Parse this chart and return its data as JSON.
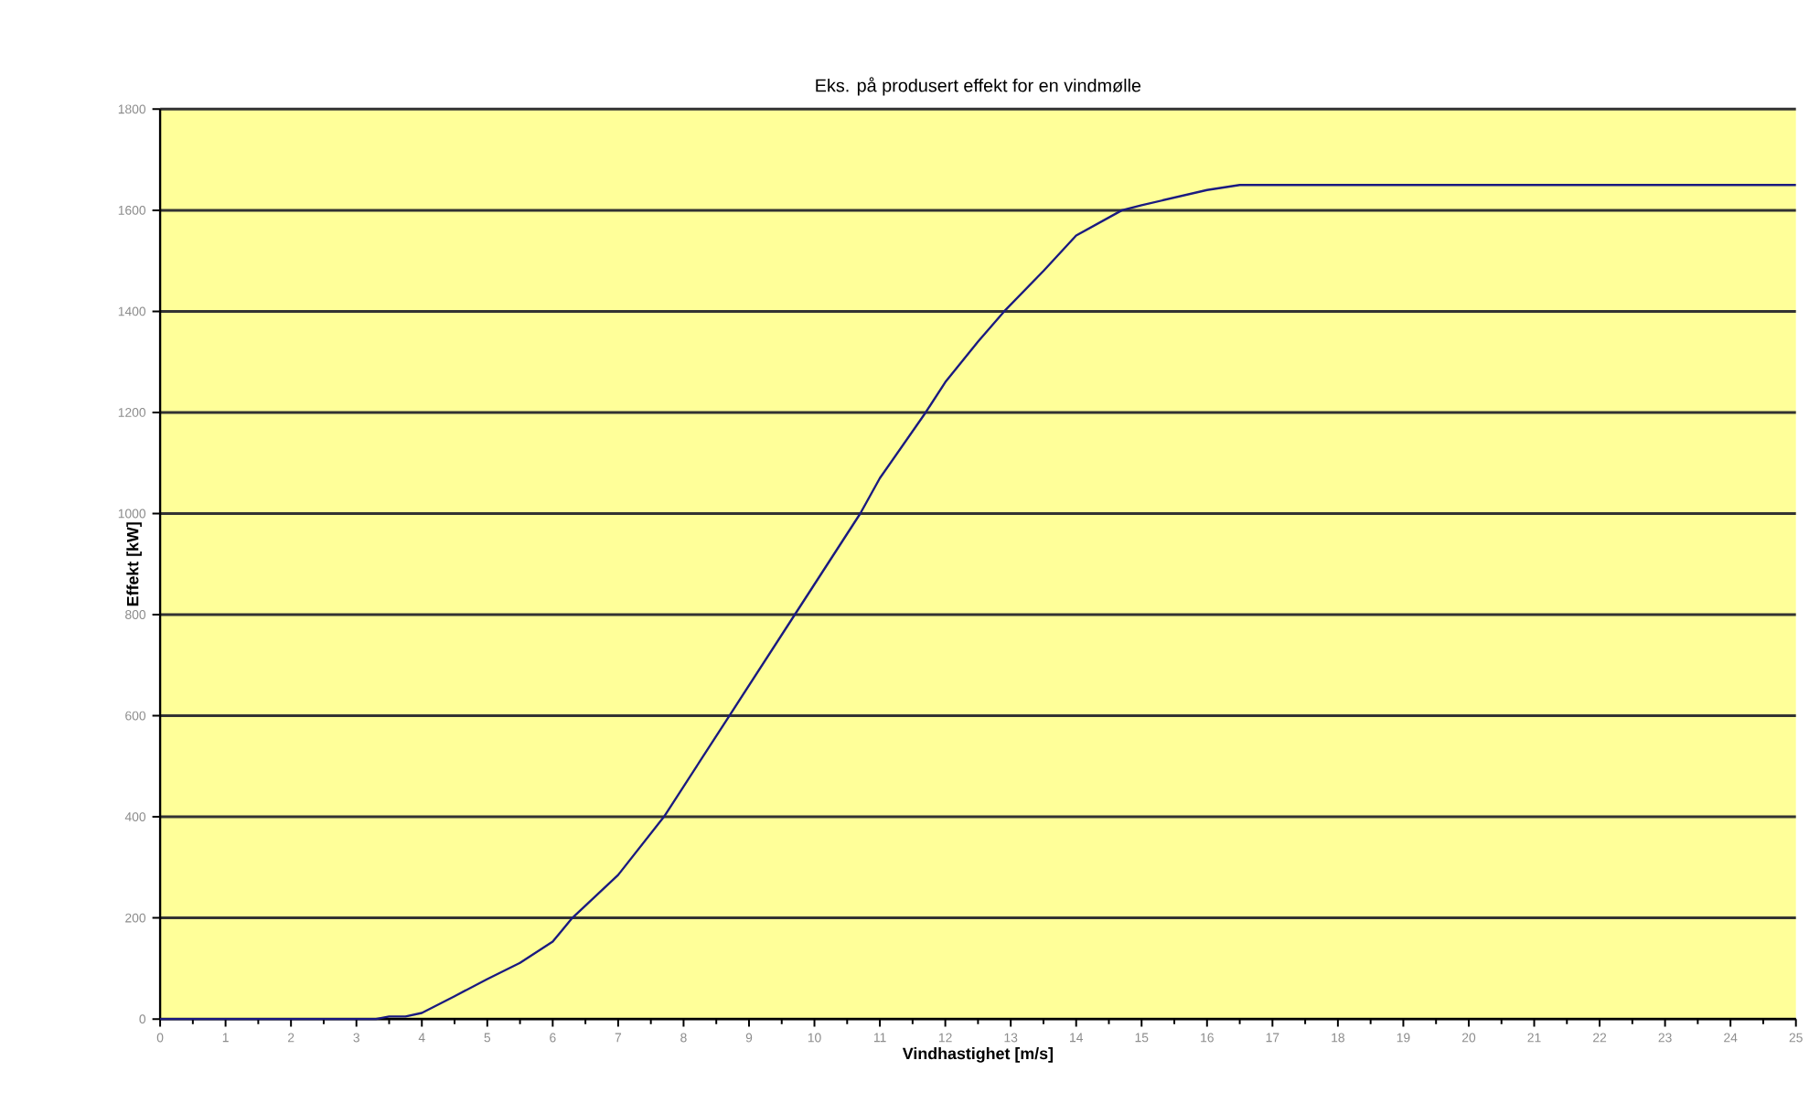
{
  "chart_data": {
    "type": "line",
    "title": "Eks. på produsert effekt for en vindmølle",
    "xlabel": "Vindhastighet [m/s]",
    "ylabel": "Effekt [kW]",
    "x": [
      0,
      1,
      2,
      3,
      3.3,
      3.5,
      3.75,
      4,
      4.5,
      5,
      5.5,
      6,
      6.3,
      7,
      7.7,
      8.7,
      9.7,
      10.7,
      11,
      11.7,
      12,
      12.5,
      12.9,
      13.5,
      14,
      14.7,
      15,
      16,
      16.5,
      17,
      18,
      19,
      20,
      21,
      22,
      23,
      24,
      25
    ],
    "series": [
      {
        "color": "#1a1a80",
        "values": [
          0,
          0,
          0,
          0,
          0,
          5,
          5,
          12,
          45,
          79,
          111,
          153,
          200,
          285,
          400,
          600,
          800,
          1000,
          1070,
          1200,
          1260,
          1340,
          1400,
          1480,
          1550,
          1600,
          1610,
          1640,
          1650,
          1650,
          1650,
          1650,
          1650,
          1650,
          1650,
          1650,
          1650,
          1650
        ]
      }
    ],
    "xlim": [
      0,
      25
    ],
    "xticks": [
      0,
      1,
      2,
      3,
      4,
      5,
      6,
      7,
      8,
      9,
      10,
      11,
      12,
      13,
      14,
      15,
      16,
      17,
      18,
      19,
      20,
      21,
      22,
      23,
      24,
      25
    ],
    "ylim": [
      0,
      1800
    ],
    "yticks": [
      0,
      200,
      400,
      600,
      800,
      1000,
      1200,
      1400,
      1600,
      1800
    ],
    "grid": "y",
    "marker": "none",
    "line_style": "solid"
  }
}
